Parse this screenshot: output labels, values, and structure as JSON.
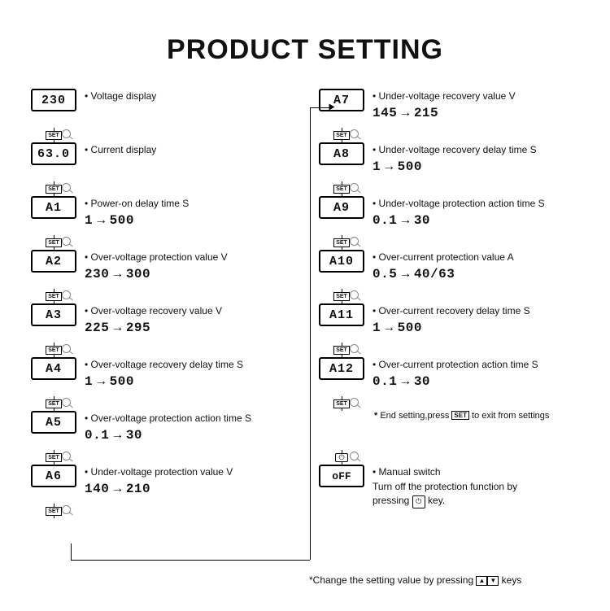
{
  "title": "PRODUCT SETTING",
  "set_label": "SET",
  "left": [
    {
      "lcd": "230",
      "label": "Voltage display",
      "range": null
    },
    {
      "lcd": "63.0",
      "label": "Current display",
      "range": null
    },
    {
      "lcd": "A1",
      "label": "Power-on delay time S",
      "range": {
        "from": "1",
        "to": "500"
      }
    },
    {
      "lcd": "A2",
      "label": "Over-voltage protection value V",
      "range": {
        "from": "230",
        "to": "300"
      }
    },
    {
      "lcd": "A3",
      "label": "Over-voltage recovery value V",
      "range": {
        "from": "225",
        "to": "295"
      }
    },
    {
      "lcd": "A4",
      "label": "Over-voltage recovery delay time S",
      "range": {
        "from": "1",
        "to": "500"
      }
    },
    {
      "lcd": "A5",
      "label": "Over-voltage protection action time S",
      "range": {
        "from": "0.1",
        "to": "30"
      }
    },
    {
      "lcd": "A6",
      "label": "Under-voltage protection value V",
      "range": {
        "from": "140",
        "to": "210"
      }
    }
  ],
  "right": [
    {
      "lcd": "A7",
      "label": "Under-voltage recovery value V",
      "range": {
        "from": "145",
        "to": "215"
      }
    },
    {
      "lcd": "A8",
      "label": "Under-voltage recovery delay time S",
      "range": {
        "from": "1",
        "to": "500"
      }
    },
    {
      "lcd": "A9",
      "label": "Under-voltage protection action time S",
      "range": {
        "from": "0.1",
        "to": "30"
      }
    },
    {
      "lcd": "A10",
      "label": "Over-current protection value A",
      "range": {
        "from": "0.5",
        "to": "40/63"
      }
    },
    {
      "lcd": "A11",
      "label": "Over-current recovery delay time S",
      "range": {
        "from": "1",
        "to": "500"
      }
    },
    {
      "lcd": "A12",
      "label": "Over-current protection action time S",
      "range": {
        "from": "0.1",
        "to": "30"
      }
    }
  ],
  "end_setting_prefix": "End setting,press",
  "end_setting_suffix": "to exit from settings",
  "manual": {
    "lcd": "oFF",
    "label": "Manual switch",
    "line2_prefix": "Turn off the protection function by",
    "line3_prefix": "pressing",
    "line3_suffix": "key."
  },
  "footnote_prefix": "*Change the setting value by pressing",
  "footnote_suffix": "keys",
  "colors": {
    "text": "#111",
    "line": "#000",
    "bg": "#ffffff"
  }
}
